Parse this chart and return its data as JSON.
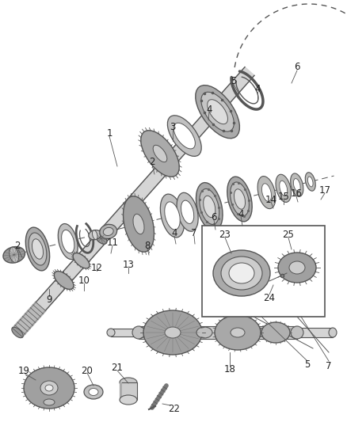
{
  "bg_color": "#ffffff",
  "lc": "#555555",
  "dark": "#444444",
  "shaft_color": "#cccccc",
  "gear_dark": "#888888",
  "gear_mid": "#aaaaaa",
  "gear_light": "#cccccc",
  "bearing_dark": "#777777",
  "bearing_mid": "#999999",
  "bearing_light": "#bbbbbb",
  "ring_color": "#aaaaaa",
  "fig_w": 4.38,
  "fig_h": 5.33,
  "dpi": 100
}
